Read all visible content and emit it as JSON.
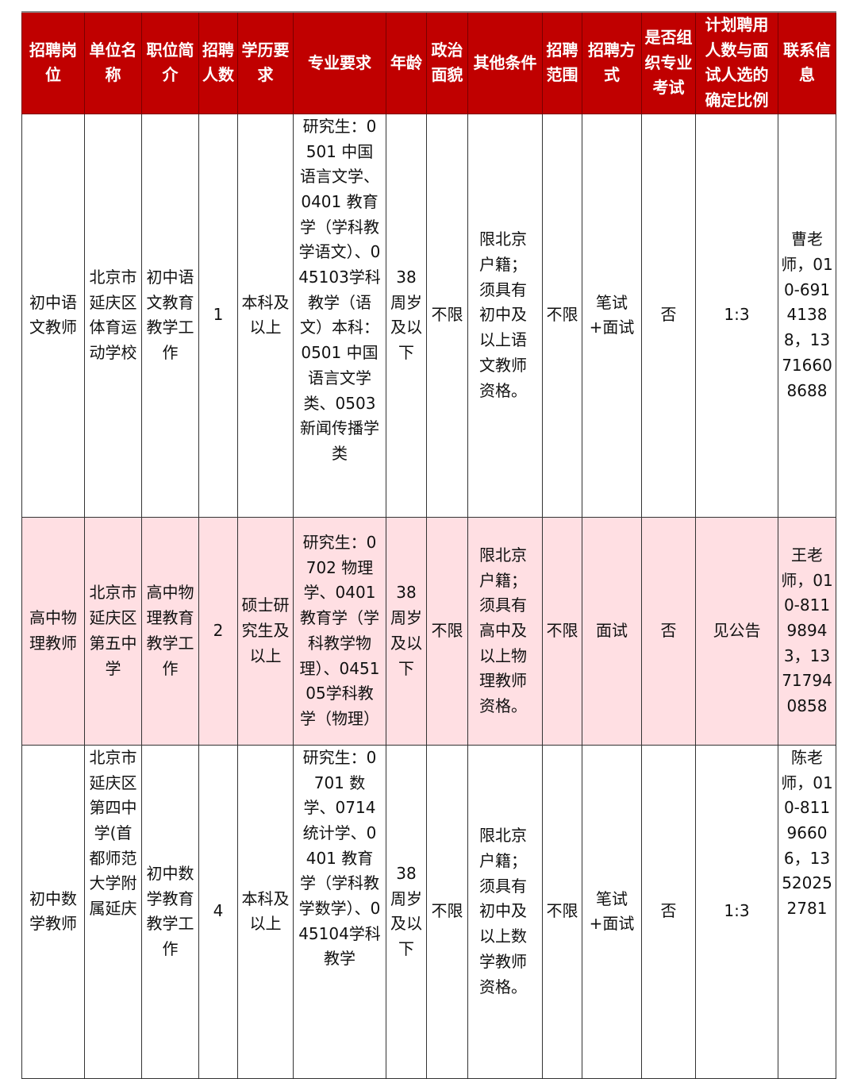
{
  "colors": {
    "header_bg": "#c00000",
    "header_text": "#ffffff",
    "highlight_row": "#ffdfe3"
  },
  "headers": [
    "招聘岗位",
    "单位名称",
    "职位简介",
    "招聘人数",
    "学历要求",
    "专业要求",
    "年龄",
    "政治面貌",
    "其他条件",
    "招聘范围",
    "招聘方式",
    "是否组织专业考试",
    "计划聘用人数与面试人选的确定比例",
    "联系信息"
  ],
  "rows": [
    {
      "post": "初中语文教师",
      "unit": "北京市延庆区体育运动学校",
      "intro": "初中语文教育教学工作",
      "count": "1",
      "education": "本科及以上",
      "major": "研究生：0501 中国语言文学、0401 教育学（学科教学语文）、045103学科教学（语文）本科：0501 中国语言文学类、0503 新闻传播学类",
      "age": "38周岁及以下",
      "politics": "不限",
      "other": "限北京户籍；须具有初中及以上语文教师资格。",
      "scope": "不限",
      "method": "笔试+面试",
      "exam": "否",
      "ratio": "1:3",
      "contact": "曹老师，010-69141388，13716608688"
    },
    {
      "post": "高中物理教师",
      "unit": "北京市延庆区第五中学",
      "intro": "高中物理教育教学工作",
      "count": "2",
      "education": "硕士研究生及以上",
      "major": "研究生：0702 物理学、0401 教育学（学科教学物理）、045105学科教学（物理）",
      "age": "38周岁及以下",
      "politics": "不限",
      "other": "限北京户籍；须具有高中及以上物理教师资格。",
      "scope": "不限",
      "method": "面试",
      "exam": "否",
      "ratio": "见公告",
      "contact": "王老师，010-81198943，13717940858"
    },
    {
      "post": "初中数学教师",
      "unit": "北京市延庆区第四中学(首都师范大学附属延庆",
      "intro": "初中数学教育教学工作",
      "count": "4",
      "education": "本科及以上",
      "major": "研究生：0701 数学、0714 统计学、0401 教育学（学科教学数学）、045104学科教学",
      "age": "38周岁及以下",
      "politics": "不限",
      "other": "限北京户籍；须具有初中及以上数学教师资格。",
      "scope": "不限",
      "method": "笔试+面试",
      "exam": "否",
      "ratio": "1:3",
      "contact": "陈老师，010-81196606，13520252781"
    }
  ]
}
